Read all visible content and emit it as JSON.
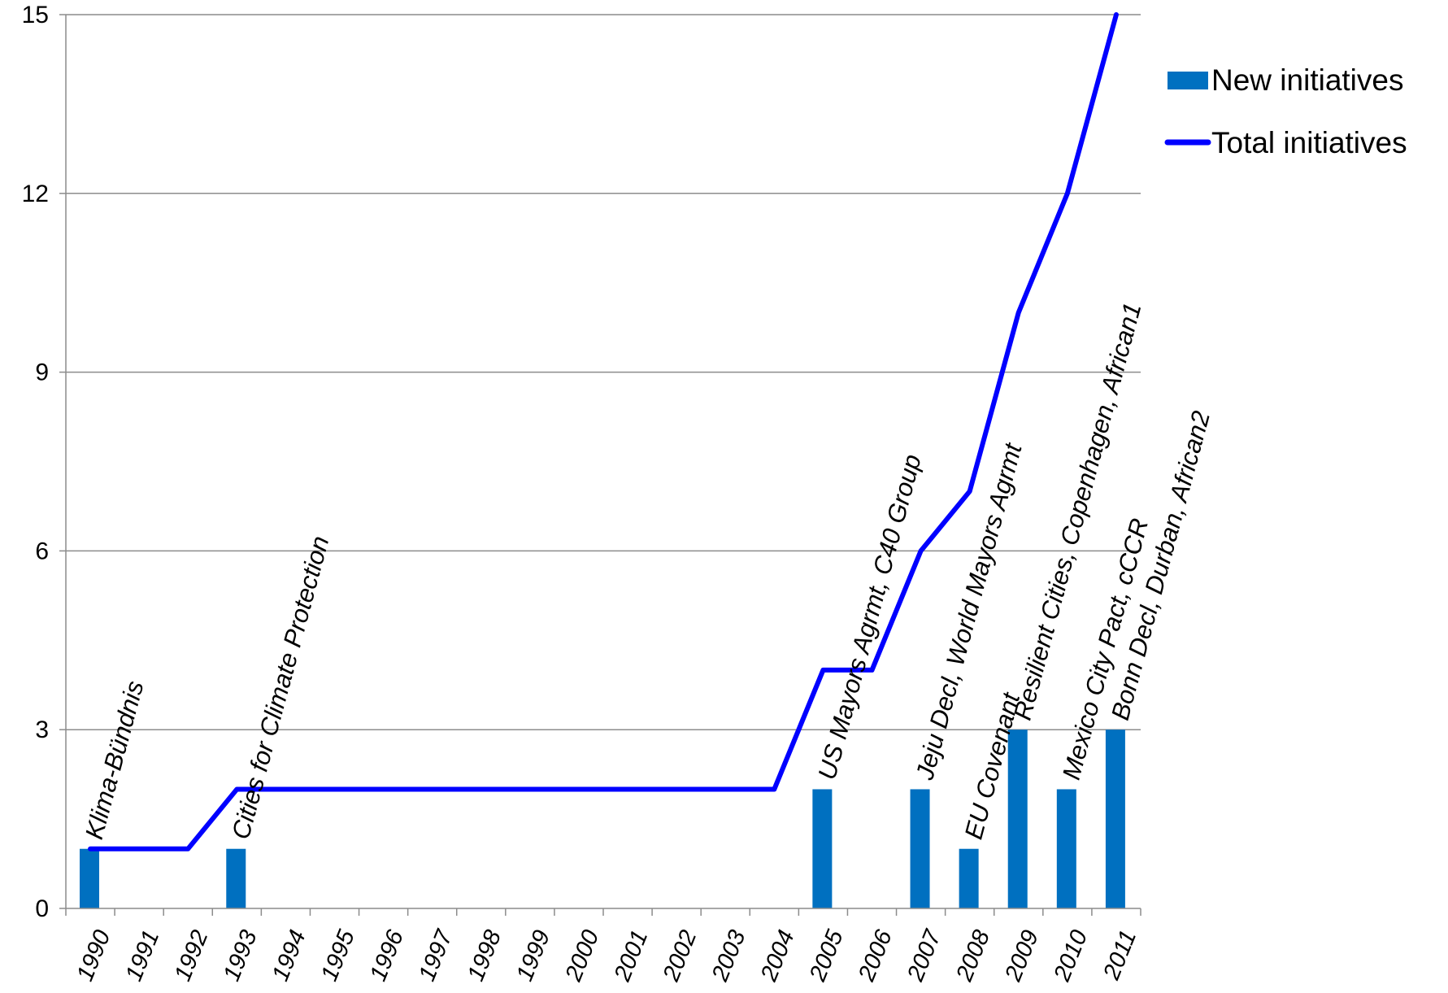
{
  "chart_data": {
    "type": "bar",
    "categories": [
      "1990",
      "1991",
      "1992",
      "1993",
      "1994",
      "1995",
      "1996",
      "1997",
      "1998",
      "1999",
      "2000",
      "2001",
      "2002",
      "2003",
      "2004",
      "2005",
      "2006",
      "2007",
      "2008",
      "2009",
      "2010",
      "2011"
    ],
    "series": [
      {
        "name": "New initiatives",
        "type": "bar",
        "color": "#0070C0",
        "values": [
          1,
          0,
          0,
          1,
          0,
          0,
          0,
          0,
          0,
          0,
          0,
          0,
          0,
          0,
          0,
          2,
          0,
          2,
          1,
          3,
          2,
          3
        ]
      },
      {
        "name": "Total initiatives",
        "type": "line",
        "color": "#0000FF",
        "values": [
          1,
          1,
          1,
          2,
          2,
          2,
          2,
          2,
          2,
          2,
          2,
          2,
          2,
          2,
          2,
          4,
          4,
          6,
          7,
          10,
          12,
          15
        ]
      }
    ],
    "annotations": [
      {
        "category": "1990",
        "text": "Klima-Bündnis"
      },
      {
        "category": "1993",
        "text": "Cities for Climate Protection"
      },
      {
        "category": "2005",
        "text": "US Mayors Agrmt, C40 Group"
      },
      {
        "category": "2007",
        "text": "Jeju Decl, World Mayors Agrmt"
      },
      {
        "category": "2008",
        "text": "EU Covenant"
      },
      {
        "category": "2009",
        "text": "Resilient Cities, Copenhagen, African1"
      },
      {
        "category": "2010",
        "text": "Mexico City Pact, cCCR"
      },
      {
        "category": "2011",
        "text": "Bonn Decl, Durban, African2"
      }
    ],
    "ylim": [
      0,
      15
    ],
    "yticks": [
      0,
      3,
      6,
      9,
      12,
      15
    ],
    "grid": true,
    "legend": "right"
  }
}
